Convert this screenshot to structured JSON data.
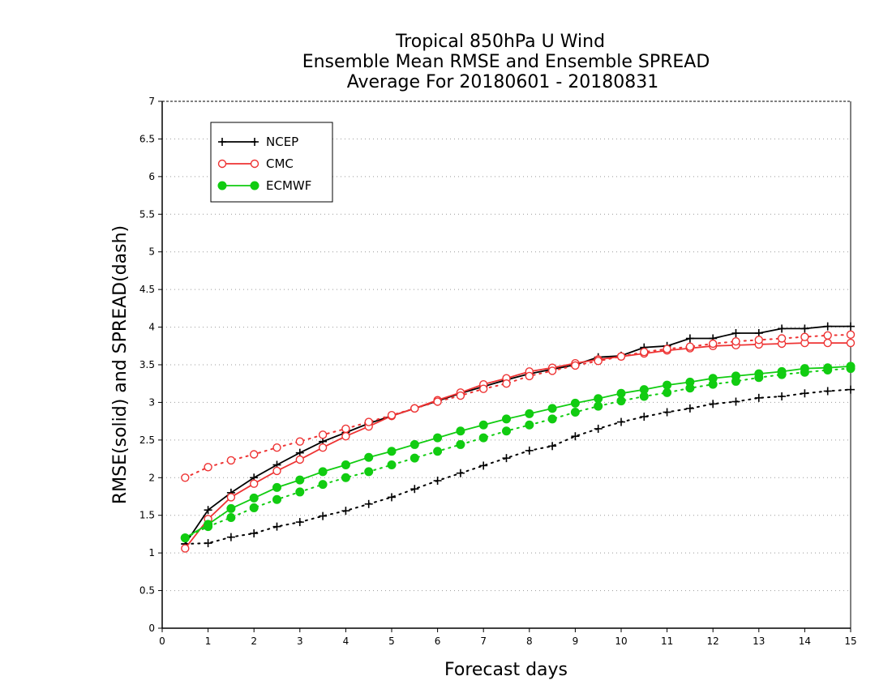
{
  "chart_data": {
    "type": "line",
    "title": [
      "Tropical 850hPa U Wind",
      "Ensemble Mean RMSE and Ensemble SPREAD",
      "Average For 20180601 - 20180831"
    ],
    "xlabel": "Forecast days",
    "ylabel": "RMSE(solid) and SPREAD(dash)",
    "xlim": [
      0,
      15
    ],
    "ylim": [
      0,
      7
    ],
    "xticks": [
      0,
      1,
      2,
      3,
      4,
      5,
      6,
      7,
      8,
      9,
      10,
      11,
      12,
      13,
      14,
      15
    ],
    "xtick_labels": [
      "0",
      "1",
      "2",
      "3",
      "4",
      "5",
      "6",
      "7",
      "8",
      "9",
      "10",
      "11",
      "12",
      "13",
      "14",
      "15"
    ],
    "yticks": [
      0,
      0.5,
      1,
      1.5,
      2,
      2.5,
      3,
      3.5,
      4,
      4.5,
      5,
      5.5,
      6,
      6.5,
      7
    ],
    "ytick_labels": [
      "0",
      "0.5",
      "1",
      "1.5",
      "2",
      "2.5",
      "3",
      "3.5",
      "4",
      "4.5",
      "5",
      "5.5",
      "6",
      "6.5",
      "7"
    ],
    "grid": "horizontal dotted",
    "legend_position": "top-left",
    "x": [
      0.5,
      1,
      1.5,
      2,
      2.5,
      3,
      3.5,
      4,
      4.5,
      5,
      5.5,
      6,
      6.5,
      7,
      7.5,
      8,
      8.5,
      9,
      9.5,
      10,
      10.5,
      11,
      11.5,
      12,
      12.5,
      13,
      13.5,
      14,
      14.5,
      15
    ],
    "series": [
      {
        "name": "NCEP",
        "metric": "RMSE",
        "style": "solid",
        "marker": "plus",
        "color": "#000000",
        "values": [
          1.12,
          1.57,
          1.8,
          2.0,
          2.17,
          2.33,
          2.48,
          2.6,
          2.72,
          2.82,
          2.92,
          3.02,
          3.12,
          3.21,
          3.3,
          3.38,
          3.44,
          3.5,
          3.6,
          3.62,
          3.73,
          3.75,
          3.85,
          3.85,
          3.92,
          3.92,
          3.98,
          3.98,
          4.01,
          4.01
        ]
      },
      {
        "name": "NCEP",
        "metric": "SPREAD",
        "style": "dotted",
        "marker": "plus",
        "color": "#000000",
        "values": [
          1.12,
          1.13,
          1.21,
          1.26,
          1.35,
          1.41,
          1.49,
          1.56,
          1.65,
          1.74,
          1.85,
          1.96,
          2.06,
          2.16,
          2.26,
          2.36,
          2.42,
          2.55,
          2.65,
          2.74,
          2.81,
          2.87,
          2.92,
          2.98,
          3.01,
          3.06,
          3.08,
          3.12,
          3.15,
          3.17
        ]
      },
      {
        "name": "CMC",
        "metric": "RMSE",
        "style": "solid",
        "marker": "open-circle",
        "color": "#ee3333",
        "values": [
          1.06,
          1.45,
          1.74,
          1.92,
          2.09,
          2.24,
          2.4,
          2.55,
          2.68,
          2.82,
          2.92,
          3.03,
          3.13,
          3.24,
          3.32,
          3.41,
          3.46,
          3.52,
          3.57,
          3.61,
          3.65,
          3.69,
          3.72,
          3.75,
          3.76,
          3.77,
          3.78,
          3.79,
          3.79,
          3.79
        ]
      },
      {
        "name": "CMC",
        "metric": "SPREAD",
        "style": "dotted",
        "marker": "open-circle",
        "color": "#ee3333",
        "values": [
          2.0,
          2.14,
          2.23,
          2.31,
          2.4,
          2.48,
          2.57,
          2.65,
          2.74,
          2.83,
          2.92,
          3.01,
          3.09,
          3.18,
          3.25,
          3.35,
          3.42,
          3.49,
          3.55,
          3.61,
          3.67,
          3.71,
          3.74,
          3.78,
          3.81,
          3.83,
          3.85,
          3.87,
          3.89,
          3.9
        ]
      },
      {
        "name": "ECMWF",
        "metric": "RMSE",
        "style": "solid",
        "marker": "filled-circle",
        "color": "#11cc11",
        "values": [
          1.2,
          1.38,
          1.59,
          1.73,
          1.87,
          1.97,
          2.08,
          2.17,
          2.27,
          2.35,
          2.44,
          2.53,
          2.62,
          2.7,
          2.78,
          2.85,
          2.92,
          2.99,
          3.05,
          3.12,
          3.17,
          3.23,
          3.27,
          3.32,
          3.35,
          3.38,
          3.41,
          3.45,
          3.46,
          3.48
        ]
      },
      {
        "name": "ECMWF",
        "metric": "SPREAD",
        "style": "dotted",
        "marker": "filled-circle",
        "color": "#11cc11",
        "values": [
          1.2,
          1.35,
          1.47,
          1.6,
          1.71,
          1.81,
          1.91,
          2.0,
          2.08,
          2.17,
          2.26,
          2.35,
          2.44,
          2.53,
          2.62,
          2.7,
          2.78,
          2.87,
          2.95,
          3.02,
          3.08,
          3.13,
          3.19,
          3.24,
          3.28,
          3.33,
          3.37,
          3.4,
          3.43,
          3.45
        ]
      }
    ],
    "legend": [
      {
        "label": "NCEP",
        "marker": "plus",
        "color": "#000000"
      },
      {
        "label": "CMC",
        "marker": "open-circle",
        "color": "#ee3333"
      },
      {
        "label": "ECMWF",
        "marker": "filled-circle",
        "color": "#11cc11"
      }
    ]
  }
}
